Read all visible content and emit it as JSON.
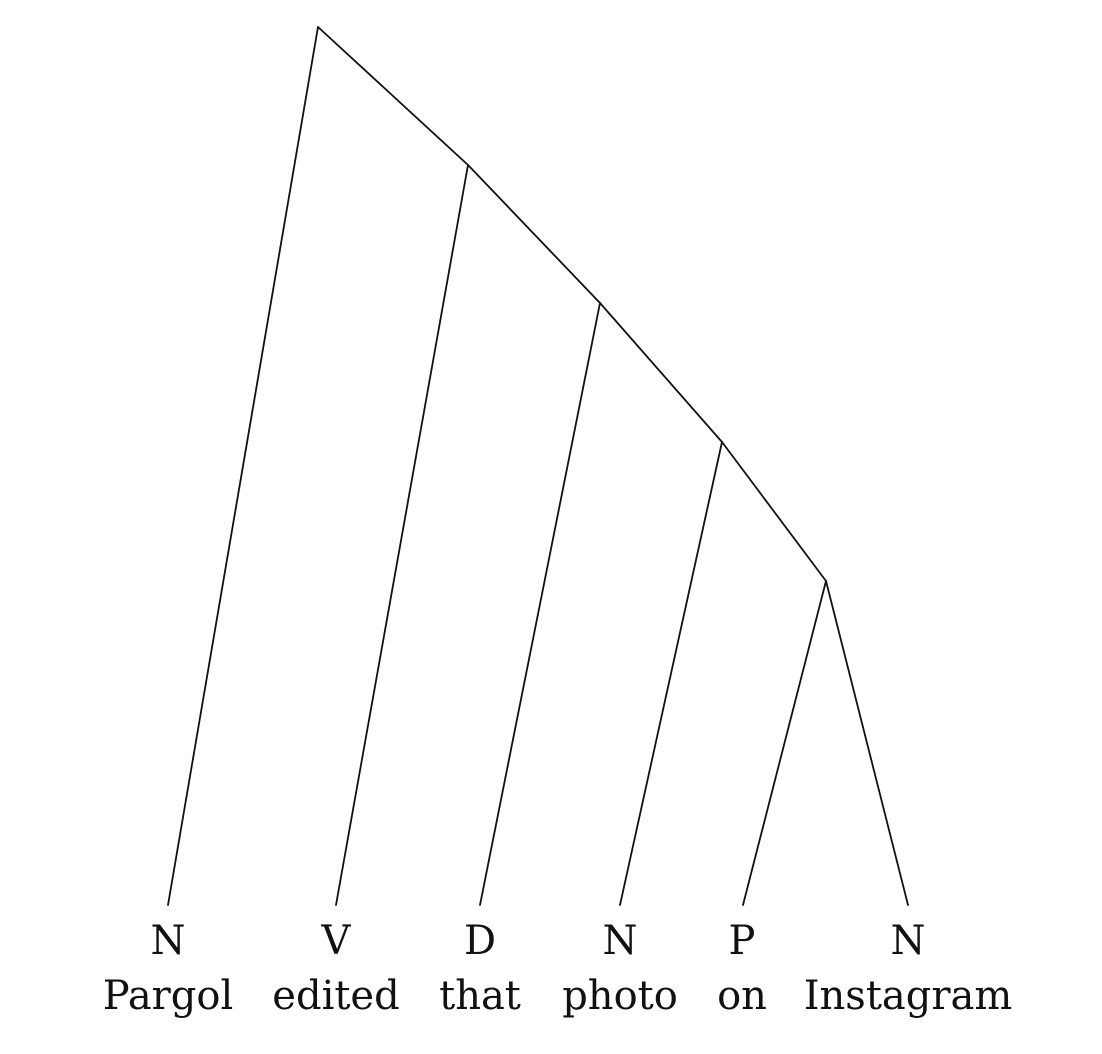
{
  "tree": {
    "leaves": [
      {
        "category": "N",
        "word": "Pargol"
      },
      {
        "category": "V",
        "word": "edited"
      },
      {
        "category": "D",
        "word": "that"
      },
      {
        "category": "N",
        "word": "photo"
      },
      {
        "category": "P",
        "word": "on"
      },
      {
        "category": "N",
        "word": "Instagram"
      }
    ]
  }
}
